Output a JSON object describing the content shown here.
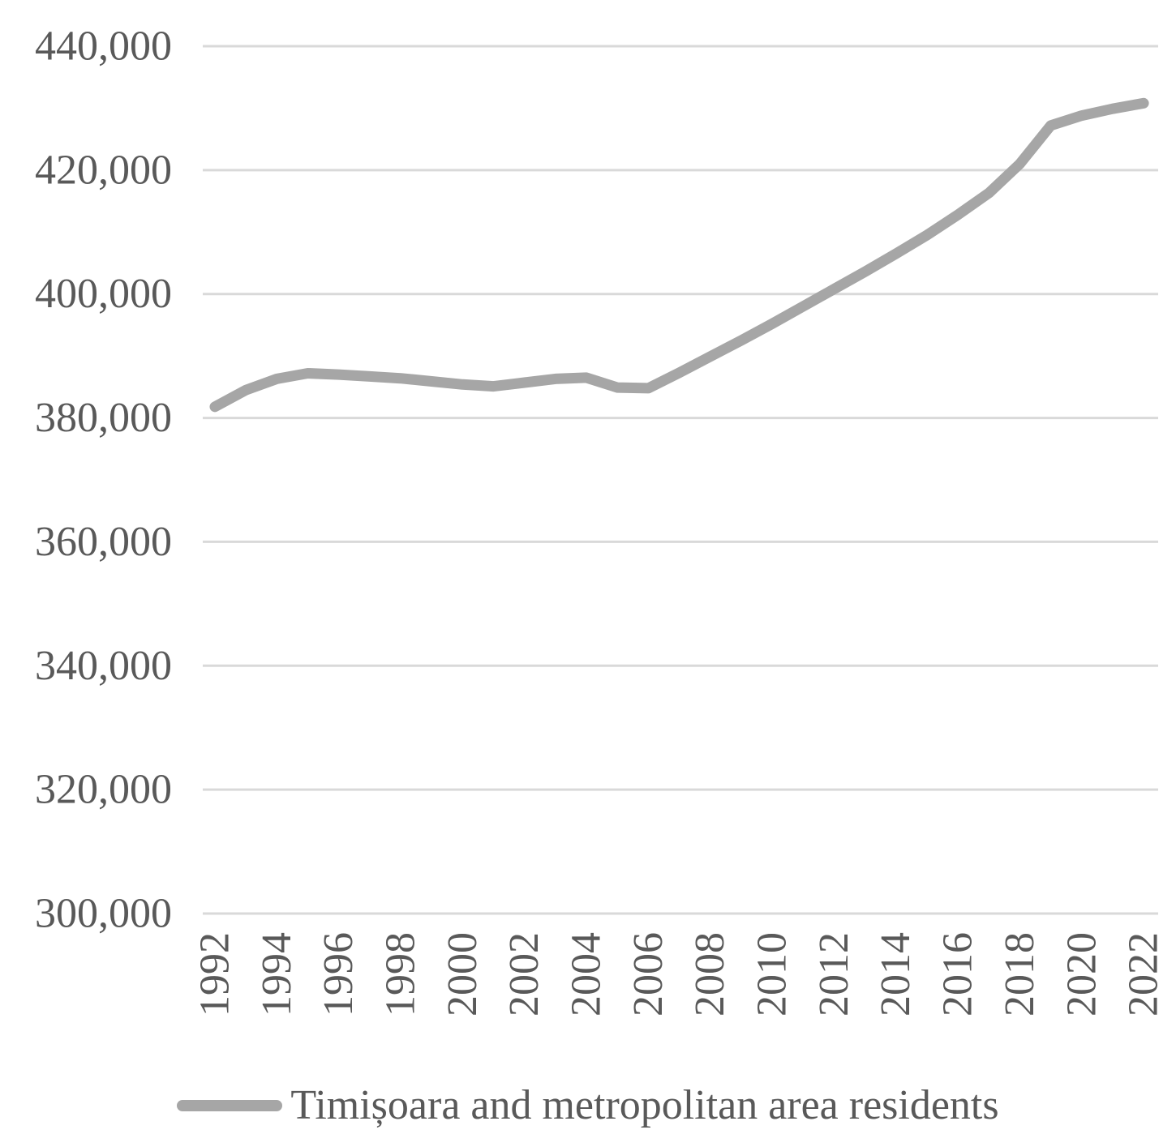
{
  "chart_data": {
    "type": "line",
    "title": "",
    "legend": "Timișoara and metropolitan area residents",
    "legend_position": "bottom",
    "grid": "horizontal-only",
    "ylim": [
      300000,
      440000
    ],
    "ytick_step": 20000,
    "yticks": [
      {
        "value": 440000,
        "label": "440,000"
      },
      {
        "value": 420000,
        "label": "420,000"
      },
      {
        "value": 400000,
        "label": "400,000"
      },
      {
        "value": 380000,
        "label": "380,000"
      },
      {
        "value": 360000,
        "label": "360,000"
      },
      {
        "value": 340000,
        "label": "340,000"
      },
      {
        "value": 320000,
        "label": "320,000"
      },
      {
        "value": 300000,
        "label": "300,000"
      }
    ],
    "xticks": [
      {
        "year": 1992,
        "label": "1992"
      },
      {
        "year": 1994,
        "label": "1994"
      },
      {
        "year": 1996,
        "label": "1996"
      },
      {
        "year": 1998,
        "label": "1998"
      },
      {
        "year": 2000,
        "label": "2000"
      },
      {
        "year": 2002,
        "label": "2002"
      },
      {
        "year": 2004,
        "label": "2004"
      },
      {
        "year": 2006,
        "label": "2006"
      },
      {
        "year": 2008,
        "label": "2008"
      },
      {
        "year": 2010,
        "label": "2010"
      },
      {
        "year": 2012,
        "label": "2012"
      },
      {
        "year": 2014,
        "label": "2014"
      },
      {
        "year": 2016,
        "label": "2016"
      },
      {
        "year": 2018,
        "label": "2018"
      },
      {
        "year": 2020,
        "label": "2020"
      },
      {
        "year": 2022,
        "label": "2022"
      }
    ],
    "x": [
      1992,
      1993,
      1994,
      1995,
      1996,
      1997,
      1998,
      1999,
      2000,
      2001,
      2002,
      2003,
      2004,
      2005,
      2006,
      2007,
      2008,
      2009,
      2010,
      2011,
      2012,
      2013,
      2014,
      2015,
      2016,
      2017,
      2018,
      2019,
      2020,
      2021,
      2022
    ],
    "series": [
      {
        "name": "Timișoara and metropolitan area residents",
        "values": [
          381800,
          384500,
          386300,
          387200,
          387000,
          386700,
          386400,
          385900,
          385400,
          385100,
          385700,
          386300,
          386500,
          384900,
          384800,
          387300,
          389900,
          392500,
          395200,
          398000,
          400800,
          403600,
          406500,
          409500,
          412800,
          416300,
          421000,
          427200,
          428800,
          429900,
          430800
        ]
      }
    ],
    "colors": {
      "line": "#a6a6a6",
      "grid": "#d9d9d9",
      "text": "#595959",
      "background": "#ffffff"
    }
  }
}
